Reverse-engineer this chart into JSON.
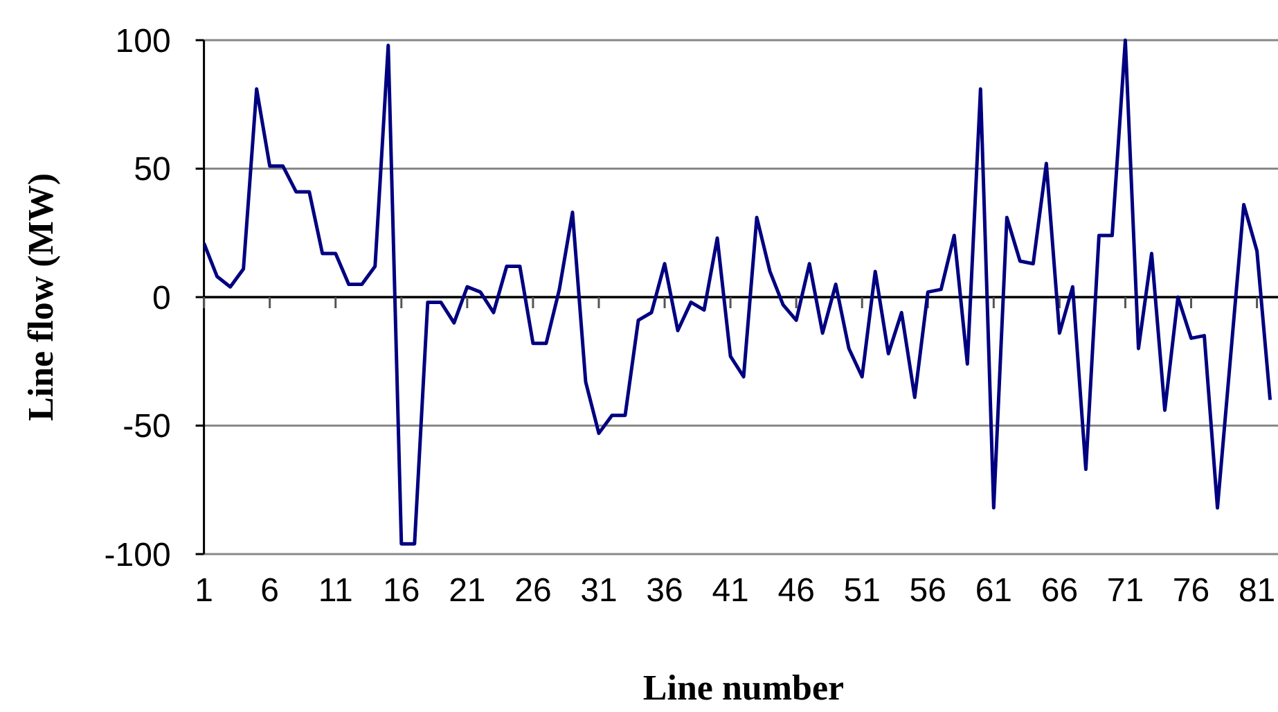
{
  "chart_data": {
    "type": "line",
    "xlabel": "Line number",
    "ylabel": "Line flow (MW)",
    "x": [
      1,
      2,
      3,
      4,
      5,
      6,
      7,
      8,
      9,
      10,
      11,
      12,
      13,
      14,
      15,
      16,
      17,
      18,
      19,
      20,
      21,
      22,
      23,
      24,
      25,
      26,
      27,
      28,
      29,
      30,
      31,
      32,
      33,
      34,
      35,
      36,
      37,
      38,
      39,
      40,
      41,
      42,
      43,
      44,
      45,
      46,
      47,
      48,
      49,
      50,
      51,
      52,
      53,
      54,
      55,
      56,
      57,
      58,
      59,
      60,
      61,
      62,
      63,
      64,
      65,
      66,
      67,
      68,
      69,
      70,
      71,
      72,
      73,
      74,
      75,
      76,
      77,
      78,
      79,
      80,
      81,
      82
    ],
    "series": [
      {
        "color": "#000080",
        "values": [
          21,
          8,
          4,
          11,
          81,
          51,
          51,
          41,
          41,
          17,
          17,
          5,
          5,
          12,
          98,
          -96,
          -96,
          -2,
          -2,
          -10,
          4,
          2,
          -6,
          12,
          12,
          -18,
          -18,
          3,
          33,
          -33,
          -53,
          -46,
          -46,
          -9,
          -6,
          13,
          -13,
          -2,
          -5,
          23,
          -23,
          -31,
          31,
          10,
          -3,
          -9,
          13,
          -14,
          5,
          -20,
          -31,
          10,
          -22,
          -6,
          -39,
          2,
          3,
          24,
          -26,
          81,
          -82,
          31,
          14,
          13,
          52,
          -14,
          4,
          -67,
          24,
          24,
          100,
          -20,
          17,
          -44,
          0,
          -16,
          -15,
          -82,
          -23,
          36,
          18,
          -40
        ]
      }
    ],
    "xlim": [
      1,
      82.6
    ],
    "xticks": [
      1,
      6,
      11,
      16,
      21,
      26,
      31,
      36,
      41,
      46,
      51,
      56,
      61,
      66,
      71,
      76,
      81
    ],
    "ylim": [
      -100,
      100
    ],
    "yticks": [
      -100,
      -50,
      0,
      50,
      100
    ],
    "grid": "y",
    "marker": "none",
    "line_style": "solid"
  }
}
